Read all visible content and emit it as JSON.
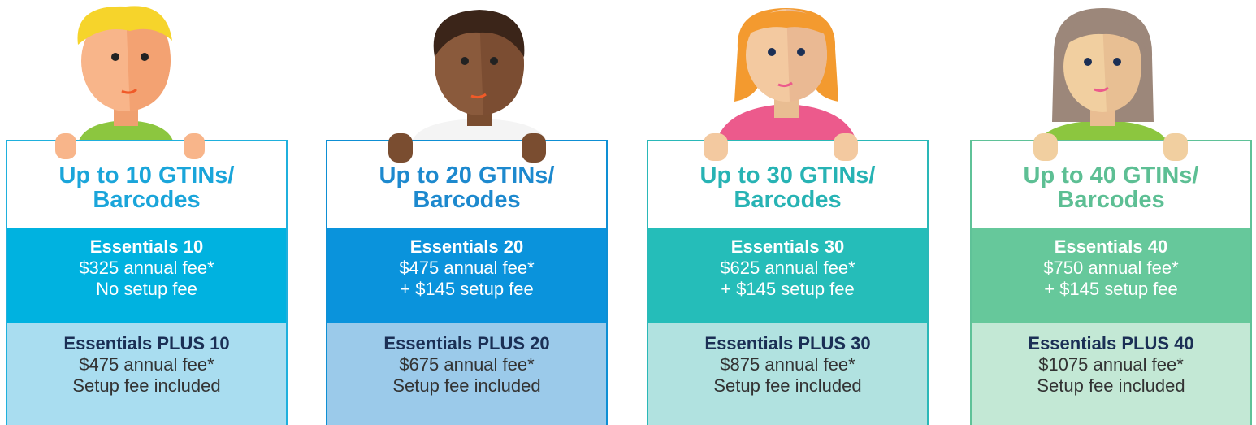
{
  "plans": [
    {
      "title": [
        "Up to 10 GTINs/",
        "Barcodes"
      ],
      "essentials": {
        "name": "Essentials 10",
        "annual": "$325 annual fee*",
        "setup": "No setup fee"
      },
      "plus": {
        "name": "Essentials PLUS 10",
        "annual": "$475 annual fee*",
        "setup": "Setup fee included"
      }
    },
    {
      "title": [
        "Up to 20 GTINs/",
        "Barcodes"
      ],
      "essentials": {
        "name": "Essentials 20",
        "annual": "$475 annual fee*",
        "setup": "+ $145 setup fee"
      },
      "plus": {
        "name": "Essentials PLUS 20",
        "annual": "$675 annual fee*",
        "setup": "Setup fee included"
      }
    },
    {
      "title": [
        "Up to 30 GTINs/",
        "Barcodes"
      ],
      "essentials": {
        "name": "Essentials 30",
        "annual": "$625 annual fee*",
        "setup": "+ $145 setup fee"
      },
      "plus": {
        "name": "Essentials PLUS 30",
        "annual": "$875 annual fee*",
        "setup": "Setup fee included"
      }
    },
    {
      "title": [
        "Up to 40 GTINs/",
        "Barcodes"
      ],
      "essentials": {
        "name": "Essentials 40",
        "annual": "$750 annual fee*",
        "setup": "+ $145 setup fee"
      },
      "plus": {
        "name": "Essentials PLUS 40",
        "annual": "$1075 annual fee*",
        "setup": "Setup fee included"
      }
    }
  ]
}
